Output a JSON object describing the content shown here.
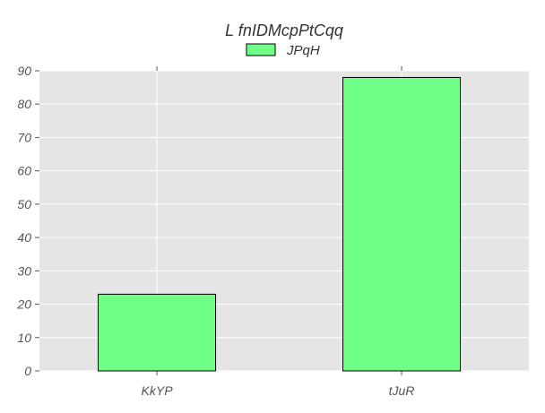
{
  "chart_data": {
    "type": "bar",
    "title": "L fnIDMcpPtCqq",
    "categories": [
      "KkYP",
      "tJuR"
    ],
    "series": [
      {
        "name": "JPqH",
        "values": [
          23,
          88
        ]
      }
    ],
    "ylim": [
      0,
      90
    ],
    "yticks": [
      "0",
      "10",
      "20",
      "30",
      "40",
      "50",
      "60",
      "70",
      "80",
      "90"
    ],
    "xlabel": "",
    "ylabel": "",
    "grid": true,
    "legend_position": "top-center"
  },
  "colors": {
    "bar_fill": "#6fff86",
    "bar_stroke": "#000000",
    "plot_background": "#e5e5e5",
    "grid": "#ffffff"
  }
}
